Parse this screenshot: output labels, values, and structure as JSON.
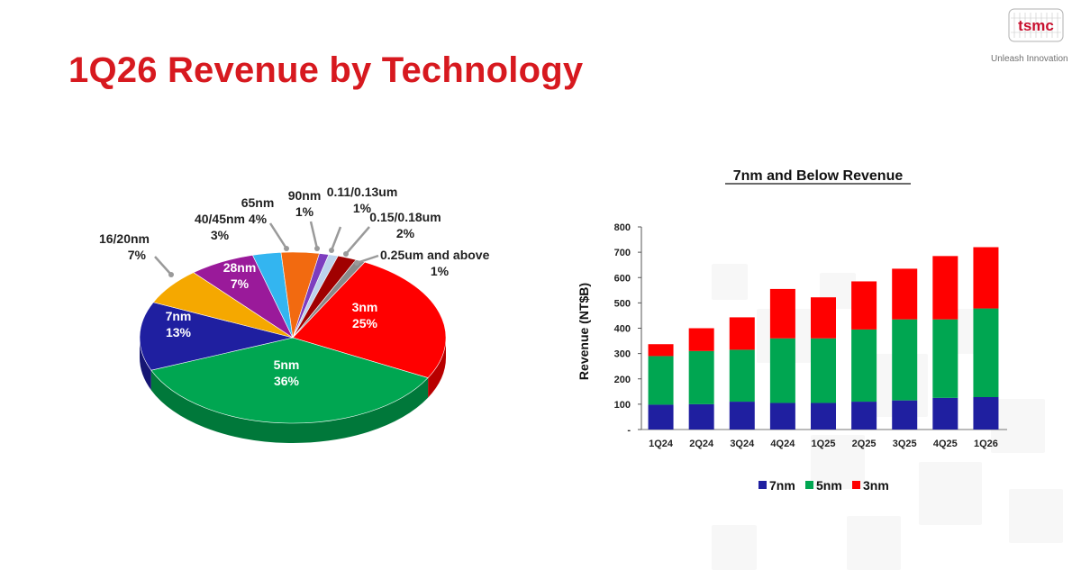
{
  "page": {
    "title": "1Q26 Revenue by Technology",
    "logo_text": "tsmc",
    "tagline": "Unleash Innovation"
  },
  "colors": {
    "title": "#d7191f",
    "3nm": "#ff0000",
    "5nm": "#00a651",
    "7nm": "#1f1fa0",
    "16/20nm": "#f5a800",
    "28nm": "#9a1a9a",
    "40/45nm": "#33b5f0",
    "65nm": "#f26a10",
    "90nm": "#7d3dbf",
    "0.11/0.13um": "#bcd2ec",
    "0.15/0.18um": "#a00000",
    "0.25um and above": "#8a8a8a"
  },
  "chart_data": [
    {
      "type": "pie",
      "title": "",
      "slices": [
        {
          "label": "3nm",
          "value": 25,
          "value_label": "25%",
          "color": "#ff0000"
        },
        {
          "label": "5nm",
          "value": 36,
          "value_label": "36%",
          "color": "#00a651"
        },
        {
          "label": "7nm",
          "value": 13,
          "value_label": "13%",
          "color": "#1f1fa0"
        },
        {
          "label": "16/20nm",
          "value": 7,
          "value_label": "7%",
          "color": "#f5a800"
        },
        {
          "label": "28nm",
          "value": 7,
          "value_label": "7%",
          "color": "#9a1a9a"
        },
        {
          "label": "40/45nm",
          "value": 3,
          "value_label": "3%",
          "color": "#33b5f0"
        },
        {
          "label": "65nm",
          "value": 4,
          "value_label": "4%",
          "color": "#f26a10"
        },
        {
          "label": "90nm",
          "value": 1,
          "value_label": "1%",
          "color": "#7d3dbf"
        },
        {
          "label": "0.11/0.13um",
          "value": 1,
          "value_label": "1%",
          "color": "#bcd2ec"
        },
        {
          "label": "0.15/0.18um",
          "value": 2,
          "value_label": "2%",
          "color": "#a00000"
        },
        {
          "label": "0.25um and above",
          "value": 1,
          "value_label": "1%",
          "color": "#8a8a8a"
        }
      ]
    },
    {
      "type": "bar",
      "stacked": true,
      "title": "7nm and Below Revenue",
      "xlabel": "",
      "ylabel": "Revenue (NT$B)",
      "ylim": [
        0,
        800
      ],
      "yticks": [
        0,
        100,
        200,
        300,
        400,
        500,
        600,
        700,
        800
      ],
      "ytick_labels": [
        "-",
        "100",
        "200",
        "300",
        "400",
        "500",
        "600",
        "700",
        "800"
      ],
      "categories": [
        "1Q24",
        "2Q24",
        "3Q24",
        "4Q24",
        "1Q25",
        "2Q25",
        "3Q25",
        "4Q25",
        "1Q26"
      ],
      "series": [
        {
          "name": "7nm",
          "color": "#1f1fa0",
          "values": [
            98,
            100,
            110,
            105,
            105,
            110,
            115,
            125,
            128
          ]
        },
        {
          "name": "5nm",
          "color": "#00a651",
          "values": [
            192,
            210,
            205,
            255,
            255,
            285,
            320,
            310,
            350
          ]
        },
        {
          "name": "3nm",
          "color": "#ff0000",
          "values": [
            47,
            90,
            128,
            195,
            162,
            190,
            200,
            250,
            242
          ]
        }
      ],
      "legend": "bottom"
    }
  ]
}
